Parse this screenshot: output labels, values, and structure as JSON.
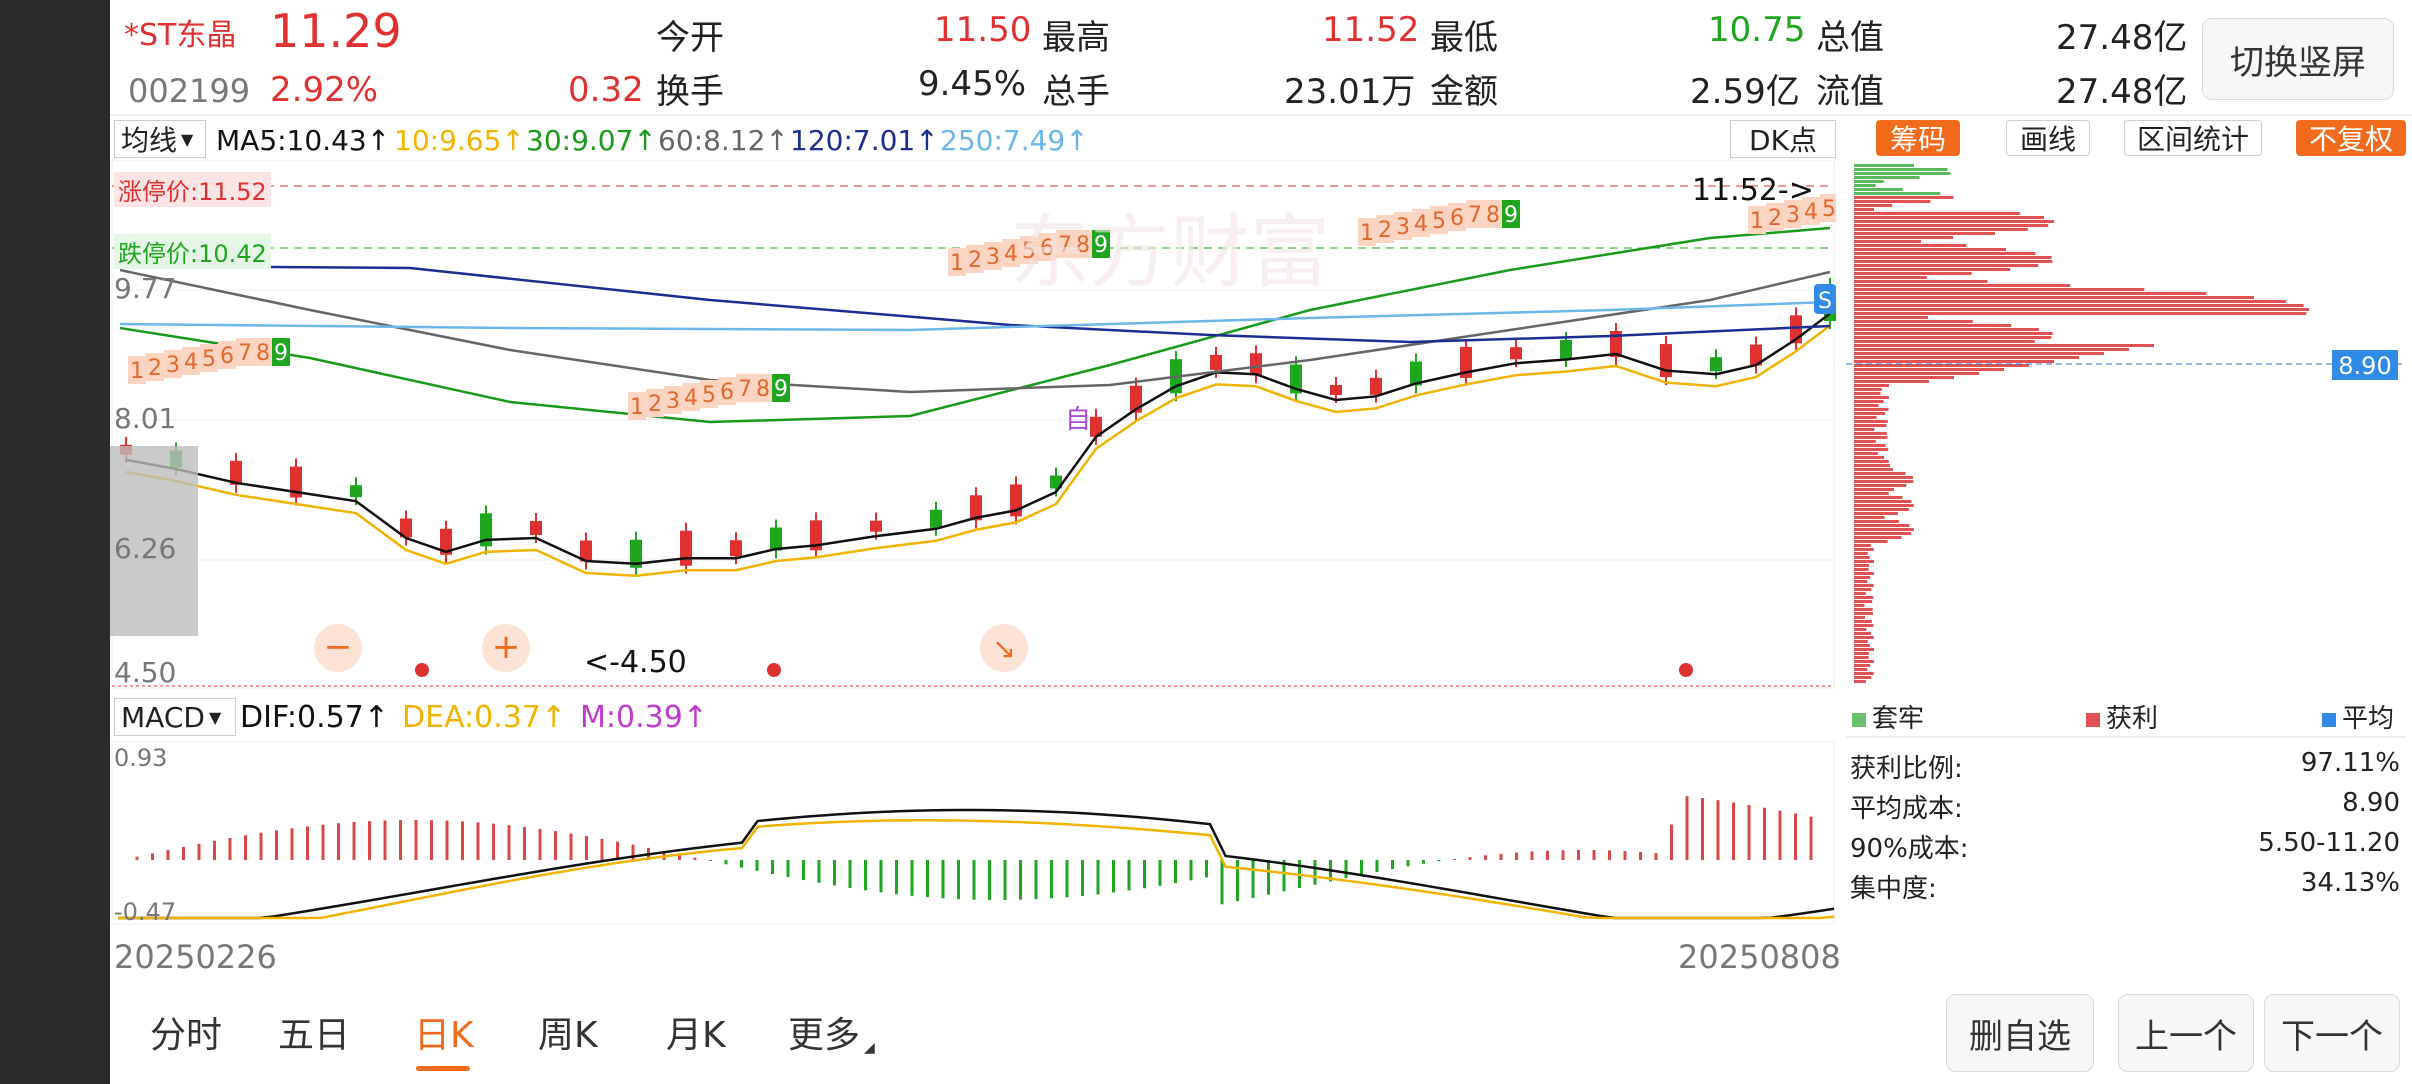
{
  "header": {
    "name": "*ST东晶",
    "price": "11.29",
    "code": "002199",
    "pct": "2.92%",
    "change": "0.32",
    "open_label": "今开",
    "open": "11.50",
    "high_label": "最高",
    "high": "11.52",
    "low_label": "最低",
    "low": "10.75",
    "mcap_label": "总值",
    "mcap": "27.48亿",
    "turn_label": "换手",
    "turn": "9.45%",
    "vol_label": "总手",
    "vol": "23.01万",
    "amt_label": "金额",
    "amt": "2.59亿",
    "float_label": "流值",
    "float": "27.48亿",
    "switch_btn": "切换竖屏"
  },
  "ma_bar": {
    "selector": "均线",
    "ma5": "MA5:10.43↑",
    "ma10": "10:9.65↑",
    "ma30": "30:9.07↑",
    "ma60": "60:8.12↑",
    "ma120": "120:7.01↑",
    "ma250": "250:7.49↑",
    "dk": "DK点"
  },
  "right_tools": {
    "chouma": "筹码",
    "huaxian": "画线",
    "qujian": "区间统计",
    "fuquan": "不复权"
  },
  "kline": {
    "limit_up": "涨停价:11.52",
    "limit_down": "跌停价:10.42",
    "y_9_77": "9.77",
    "y_8_01": "8.01",
    "y_6_26": "6.26",
    "y_4_50": "4.50",
    "max_tag": "11.52->",
    "min_tag": "<-4.50",
    "zi": "自",
    "s_tag": "S",
    "watermark": "东方财富",
    "nine_labels": [
      "1",
      "2",
      "3",
      "4",
      "5",
      "6",
      "7",
      "8",
      "9"
    ]
  },
  "macd": {
    "selector": "MACD",
    "dif": "DIF:0.57↑",
    "dea": "DEA:0.37↑",
    "m": "M:0.39↑",
    "top": "0.93",
    "bottom": "-0.47"
  },
  "dates": {
    "start": "20250226",
    "end": "20250808"
  },
  "chip": {
    "legend_tao": "套牢",
    "legend_huo": "获利",
    "legend_avg": "平均",
    "avg_tag": "8.90",
    "rows": [
      {
        "label": "获利比例:",
        "value": "97.11%"
      },
      {
        "label": "平均成本:",
        "value": "8.90"
      },
      {
        "label": "90%成本:",
        "value": "5.50-11.20"
      },
      {
        "label": "集中度:",
        "value": "34.13%"
      }
    ]
  },
  "tabs": [
    "分时",
    "五日",
    "日K",
    "周K",
    "月K",
    "更多"
  ],
  "bottom_buttons": {
    "del": "删自选",
    "prev": "上一个",
    "next": "下一个"
  },
  "colors": {
    "up": "#e03131",
    "down": "#1ea61e",
    "orange": "#f26a1b",
    "ma5": "#111111",
    "ma10": "#f0b400",
    "ma30": "#1a9a1a",
    "ma60": "#666666",
    "ma120": "#1b2d8f",
    "ma250": "#6cb7e8"
  }
}
